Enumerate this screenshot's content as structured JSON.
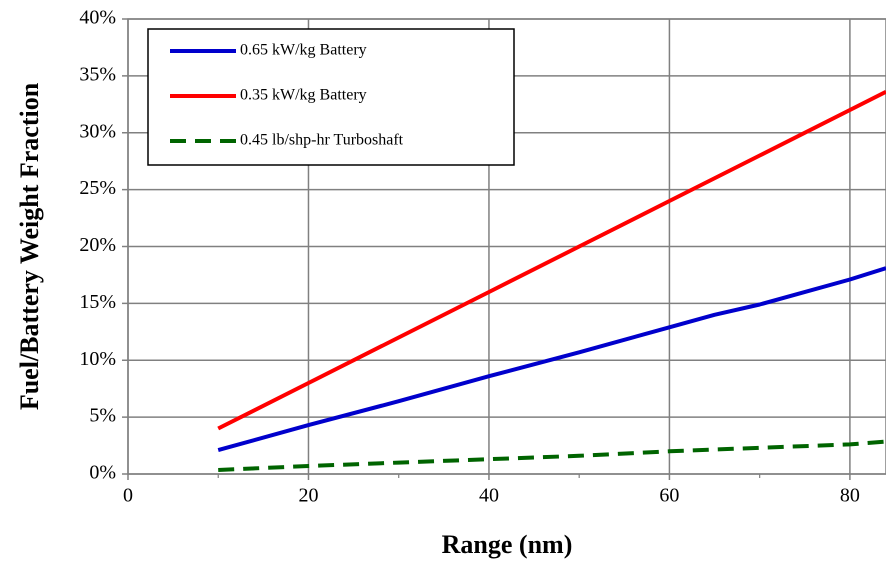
{
  "chart_data": {
    "type": "line",
    "title": "",
    "xlabel": "Range (nm)",
    "ylabel": "Fuel/Battery Weight Fraction",
    "xlim": [
      0,
      84
    ],
    "ylim": [
      0,
      40
    ],
    "xticks": [
      0,
      20,
      40,
      60,
      80
    ],
    "yticks": [
      0,
      5,
      10,
      15,
      20,
      25,
      30,
      35,
      40
    ],
    "ytick_suffix": "%",
    "grid": true,
    "legend_position": "top-left",
    "series": [
      {
        "name": "0.65 kW/kg Battery",
        "color": "#0000cc",
        "dash": "solid",
        "x": [
          10,
          20,
          30,
          40,
          50,
          60,
          65,
          70,
          80,
          84
        ],
        "y": [
          2.1,
          4.3,
          6.4,
          8.6,
          10.7,
          12.9,
          14.0,
          14.9,
          17.1,
          18.1
        ]
      },
      {
        "name": "0.35 kW/kg Battery",
        "color": "#ff0000",
        "dash": "solid",
        "x": [
          10,
          20,
          30,
          40,
          50,
          60,
          70,
          80,
          84
        ],
        "y": [
          4.0,
          8.0,
          12.0,
          16.0,
          20.0,
          24.0,
          28.0,
          32.0,
          33.6
        ]
      },
      {
        "name": "0.45 lb/shp-hr Turboshaft",
        "color": "#006400",
        "dash": "dashed",
        "x": [
          10,
          20,
          30,
          40,
          50,
          60,
          70,
          80,
          84
        ],
        "y": [
          0.35,
          0.7,
          1.0,
          1.3,
          1.6,
          2.0,
          2.3,
          2.6,
          2.85
        ]
      }
    ]
  }
}
